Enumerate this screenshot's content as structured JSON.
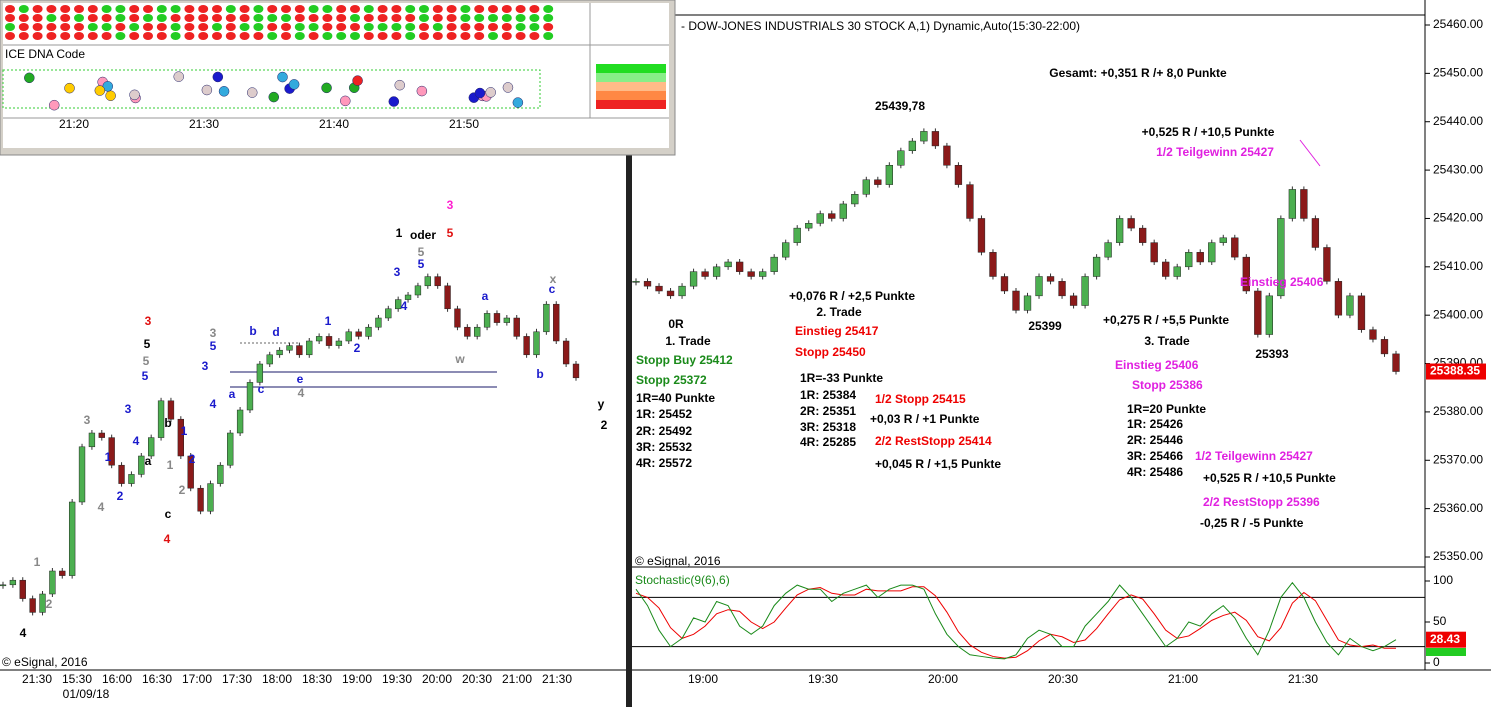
{
  "popup": {
    "title": "ICE DNA Code",
    "times": [
      "21:20",
      "21:30",
      "21:40",
      "21:50"
    ]
  },
  "left_chart": {
    "closes": [
      12,
      13,
      9,
      6,
      10,
      15,
      14,
      30,
      42,
      45,
      44,
      38,
      34,
      36,
      40,
      44,
      52,
      48,
      40,
      33,
      28,
      34,
      38,
      45,
      50,
      56,
      60,
      62,
      63,
      64,
      62,
      65,
      66,
      64,
      65,
      67,
      66,
      68,
      70,
      72,
      74,
      75,
      77,
      79,
      77,
      72,
      68,
      66,
      68,
      71,
      69,
      70,
      66,
      62,
      67,
      73,
      65,
      60,
      57
    ],
    "ylim": [
      0,
      100
    ],
    "time_labels": [
      "21:30",
      "15:30",
      "16:00",
      "16:30",
      "17:00",
      "17:30",
      "18:00",
      "18:30",
      "19:00",
      "19:30",
      "20:00",
      "20:30",
      "21:00",
      "21:30"
    ],
    "date_label": "01/09/18",
    "wave_labels": [
      "3",
      "5",
      "5",
      "5",
      "3",
      "3",
      "1",
      "2",
      "4",
      "4",
      "a",
      "b",
      "c",
      "4",
      "1",
      "2",
      "1",
      "2",
      "3",
      "4",
      "5",
      "3",
      "b",
      "d",
      "a",
      "c",
      "e",
      "4",
      "1",
      "2",
      "3",
      "4",
      "5",
      "5",
      "1",
      "oder",
      "3",
      "5",
      "w",
      "a",
      "x",
      "c",
      "b",
      "y",
      "2",
      "1",
      "2",
      "4"
    ],
    "copyright": "© eSignal, 2016"
  },
  "right_chart": {
    "title": "- DOW-JONES INDUSTRIALS 30 STOCK A,1) Dynamic,Auto(15:30-22:00)",
    "closes": [
      25407,
      25406,
      25405,
      25404,
      25406,
      25409,
      25408,
      25410,
      25411,
      25409,
      25408,
      25409,
      25412,
      25415,
      25418,
      25419,
      25421,
      25420,
      25423,
      25425,
      25428,
      25427,
      25431,
      25434,
      25436,
      25438,
      25435,
      25431,
      25427,
      25420,
      25413,
      25408,
      25405,
      25401,
      25404,
      25408,
      25407,
      25404,
      25402,
      25408,
      25412,
      25415,
      25420,
      25418,
      25415,
      25411,
      25408,
      25410,
      25413,
      25411,
      25415,
      25416,
      25412,
      25405,
      25396,
      25404,
      25420,
      25426,
      25420,
      25414,
      25407,
      25400,
      25404,
      25397,
      25395,
      25392,
      25388.35
    ],
    "ylim": [
      25350,
      25460
    ],
    "yticks": [
      {
        "value": 25350,
        "label": "25350.00"
      },
      {
        "value": 25360,
        "label": "25360.00"
      },
      {
        "value": 25370,
        "label": "25370.00"
      },
      {
        "value": 25380,
        "label": "25380.00"
      },
      {
        "value": 25390,
        "label": "25390.00"
      },
      {
        "value": 25400,
        "label": "25400.00"
      },
      {
        "value": 25410,
        "label": "25410.00"
      },
      {
        "value": 25420,
        "label": "25420.00"
      },
      {
        "value": 25430,
        "label": "25430.00"
      },
      {
        "value": 25440,
        "label": "25440.00"
      },
      {
        "value": 25450,
        "label": "25450.00"
      },
      {
        "value": 25460,
        "label": "25460.00"
      }
    ],
    "time_labels": [
      "19:00",
      "19:30",
      "20:00",
      "20:30",
      "21:00",
      "21:30"
    ],
    "annotations": [
      "Gesamt: +0,351 R /+ 8,0 Punkte",
      "25439,78",
      "+0,525 R / +10,5 Punkte",
      "1/2 Teilgewinn 25427",
      "0R",
      "1. Trade",
      "Stopp Buy 25412",
      "Stopp 25372",
      "1R=40 Punkte",
      "1R: 25452",
      "2R: 25492",
      "3R: 25532",
      "4R: 25572",
      "+0,076 R / +2,5 Punkte",
      "2. Trade",
      "Einstieg 25417",
      "Stopp 25450",
      "1R=-33 Punkte",
      "1R: 25384",
      "2R: 25351",
      "3R: 25318",
      "4R: 25285",
      "1/2 Stopp 25415",
      "+0,03 R / +1 Punkte",
      "2/2 RestStopp 25414",
      "+0,045 R / +1,5 Punkte",
      "25399",
      "+0,275 R / +5,5 Punkte",
      "3. Trade",
      "Einstieg 25406",
      "Stopp 25386",
      "1R=20 Punkte",
      "1R: 25426",
      "2R: 25446",
      "3R: 25466",
      "4R: 25486",
      "1/2 Teilgewinn 25427",
      "+0,525 R / +10,5 Punkte",
      "2/2 RestStopp 25396",
      "-0,25 R / -5 Punkte",
      "25393",
      "Einstieg 25406"
    ],
    "copyright": "© eSignal, 2016",
    "stochastic": {
      "label": "Stochastic(9(6),6)",
      "k": [
        90,
        70,
        40,
        20,
        30,
        55,
        50,
        75,
        70,
        45,
        35,
        45,
        70,
        85,
        95,
        90,
        90,
        75,
        85,
        90,
        95,
        80,
        90,
        95,
        95,
        90,
        60,
        35,
        20,
        10,
        8,
        6,
        5,
        10,
        30,
        40,
        35,
        20,
        20,
        45,
        60,
        75,
        95,
        80,
        60,
        40,
        20,
        30,
        50,
        45,
        60,
        70,
        55,
        30,
        10,
        40,
        80,
        98,
        80,
        50,
        25,
        10,
        30,
        20,
        15,
        20,
        28.43
      ],
      "d": [
        85,
        80,
        67,
        43,
        30,
        35,
        45,
        60,
        65,
        63,
        50,
        42,
        50,
        67,
        83,
        90,
        92,
        85,
        83,
        83,
        90,
        88,
        88,
        88,
        93,
        93,
        82,
        62,
        38,
        22,
        13,
        8,
        6,
        7,
        15,
        27,
        35,
        32,
        25,
        28,
        42,
        60,
        77,
        83,
        78,
        60,
        40,
        30,
        33,
        42,
        52,
        58,
        62,
        52,
        32,
        27,
        43,
        73,
        86,
        76,
        52,
        28,
        22,
        20,
        22,
        18,
        18
      ],
      "ylim": [
        0,
        100
      ],
      "yticks": [
        0,
        50,
        100
      ],
      "levels": [
        80,
        20
      ]
    }
  }
}
